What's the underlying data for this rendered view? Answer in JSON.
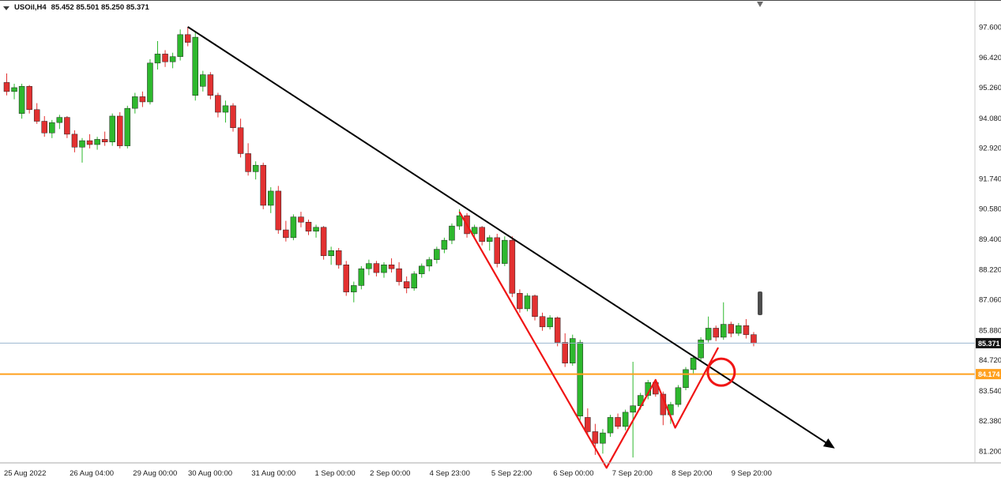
{
  "header": {
    "symbol_label": "USOil,H4",
    "ohlc_values": "85.452 85.501 85.250 85.371"
  },
  "chart_data": {
    "type": "candlestick",
    "title": "USOil,H4",
    "symbol": "USOil",
    "timeframe": "H4",
    "current_bar": {
      "open": 85.452,
      "high": 85.501,
      "low": 85.25,
      "close": 85.371
    },
    "price_axis": {
      "min": 81.2,
      "max": 97.6,
      "ticks": [
        "97.600",
        "96.420",
        "95.260",
        "94.080",
        "92.920",
        "91.740",
        "90.580",
        "89.400",
        "88.220",
        "87.060",
        "85.880",
        "84.720",
        "83.540",
        "82.380",
        "81.200"
      ]
    },
    "time_axis": [
      {
        "label": "25 Aug 2022",
        "index": 0
      },
      {
        "label": "26 Aug 04:00",
        "index": 8.7
      },
      {
        "label": "29 Aug 00:00",
        "index": 17.1
      },
      {
        "label": "30 Aug 00:00",
        "index": 24.4
      },
      {
        "label": "31 Aug 00:00",
        "index": 32.8
      },
      {
        "label": "1 Sep 00:00",
        "index": 41.2
      },
      {
        "label": "2 Sep 00:00",
        "index": 48.5
      },
      {
        "label": "4 Sep 23:00",
        "index": 56.4
      },
      {
        "label": "5 Sep 22:00",
        "index": 64.6
      },
      {
        "label": "6 Sep 00:00",
        "index": 72.8
      },
      {
        "label": "7 Sep 20:00",
        "index": 80.6
      },
      {
        "label": "8 Sep 20:00",
        "index": 88.5
      },
      {
        "label": "9 Sep 20:00",
        "index": 96.4
      }
    ],
    "candles": [
      [
        95.45,
        95.8,
        94.95,
        95.1
      ],
      [
        95.1,
        95.4,
        94.8,
        95.25
      ],
      [
        94.25,
        95.4,
        94.05,
        95.3
      ],
      [
        95.3,
        95.35,
        94.25,
        94.4
      ],
      [
        94.4,
        94.65,
        93.85,
        93.95
      ],
      [
        93.95,
        94.15,
        93.35,
        93.5
      ],
      [
        93.5,
        94,
        93.3,
        93.9
      ],
      [
        93.9,
        94.2,
        93.65,
        94.1
      ],
      [
        94.1,
        94.15,
        93.3,
        93.45
      ],
      [
        93.45,
        93.6,
        92.75,
        92.95
      ],
      [
        92.95,
        93.3,
        92.35,
        93.2
      ],
      [
        93.2,
        93.45,
        92.9,
        93.05
      ],
      [
        93.05,
        93.35,
        92.85,
        93.25
      ],
      [
        93.25,
        93.55,
        93,
        93.15
      ],
      [
        93.15,
        94.25,
        93,
        94.15
      ],
      [
        94.15,
        94.3,
        92.9,
        93
      ],
      [
        93,
        94.55,
        92.9,
        94.45
      ],
      [
        94.45,
        95.05,
        94.25,
        94.9
      ],
      [
        94.9,
        95.1,
        94.5,
        94.7
      ],
      [
        94.7,
        96.35,
        94.6,
        96.2
      ],
      [
        96.2,
        97.05,
        95.95,
        96.55
      ],
      [
        96.55,
        96.7,
        96.05,
        96.25
      ],
      [
        96.25,
        96.6,
        96,
        96.45
      ],
      [
        96.45,
        97.5,
        96.3,
        97.3
      ],
      [
        97.3,
        97.6,
        96.85,
        97
      ],
      [
        94.95,
        97.4,
        94.75,
        97.2
      ],
      [
        95.3,
        95.9,
        95.1,
        95.75
      ],
      [
        95.75,
        95.85,
        94.8,
        94.95
      ],
      [
        94.95,
        95.05,
        94.1,
        94.3
      ],
      [
        94.3,
        94.75,
        93.9,
        94.55
      ],
      [
        94.55,
        94.65,
        93.55,
        93.7
      ],
      [
        93.7,
        94.05,
        92.55,
        92.7
      ],
      [
        92.7,
        93.1,
        91.85,
        92
      ],
      [
        92,
        92.4,
        91.7,
        92.25
      ],
      [
        92.25,
        92.35,
        90.55,
        90.7
      ],
      [
        90.7,
        91.4,
        90.4,
        91.25
      ],
      [
        91.25,
        91.45,
        89.6,
        89.75
      ],
      [
        89.75,
        90.1,
        89.3,
        89.45
      ],
      [
        89.45,
        90.35,
        89.35,
        90.25
      ],
      [
        90.25,
        90.45,
        89.85,
        90.05
      ],
      [
        90.05,
        90.15,
        89.55,
        89.7
      ],
      [
        89.7,
        89.95,
        89.45,
        89.85
      ],
      [
        89.85,
        89.9,
        88.6,
        88.75
      ],
      [
        88.75,
        89.1,
        88.4,
        88.95
      ],
      [
        88.95,
        89.05,
        88.25,
        88.4
      ],
      [
        88.4,
        88.55,
        87.2,
        87.35
      ],
      [
        87.35,
        87.75,
        86.95,
        87.6
      ],
      [
        87.6,
        88.35,
        87.45,
        88.25
      ],
      [
        88.25,
        88.6,
        88,
        88.45
      ],
      [
        88.45,
        88.55,
        87.95,
        88.1
      ],
      [
        88.1,
        88.5,
        87.9,
        88.4
      ],
      [
        88.4,
        88.65,
        88.1,
        88.25
      ],
      [
        88.25,
        88.5,
        87.6,
        87.75
      ],
      [
        87.75,
        87.95,
        87.3,
        87.5
      ],
      [
        87.5,
        88.15,
        87.4,
        88.05
      ],
      [
        88.05,
        88.45,
        87.9,
        88.35
      ],
      [
        88.35,
        88.7,
        88.15,
        88.6
      ],
      [
        88.6,
        89.1,
        88.45,
        89
      ],
      [
        89,
        89.45,
        88.85,
        89.35
      ],
      [
        89.35,
        90,
        89.2,
        89.9
      ],
      [
        89.9,
        90.55,
        89.75,
        90.3
      ],
      [
        90.3,
        90.4,
        89.45,
        89.6
      ],
      [
        89.6,
        89.95,
        89.4,
        89.85
      ],
      [
        89.85,
        89.9,
        89.15,
        89.3
      ],
      [
        89.3,
        89.55,
        88.95,
        89.45
      ],
      [
        89.45,
        89.6,
        88.3,
        88.45
      ],
      [
        88.45,
        89.5,
        88.35,
        89.35
      ],
      [
        89.35,
        89.5,
        87.15,
        87.3
      ],
      [
        87.3,
        87.45,
        86.55,
        86.7
      ],
      [
        86.7,
        87.3,
        86.6,
        87.2
      ],
      [
        87.2,
        87.25,
        86.25,
        86.4
      ],
      [
        86.4,
        86.55,
        85.85,
        86
      ],
      [
        86,
        86.45,
        85.9,
        86.35
      ],
      [
        86.35,
        86.4,
        85.25,
        85.4
      ],
      [
        85.4,
        85.75,
        84.45,
        84.6
      ],
      [
        84.6,
        85.7,
        84.5,
        85.55
      ],
      [
        82.55,
        85.5,
        82.4,
        85.4
      ],
      [
        82.5,
        82.85,
        81.8,
        81.95
      ],
      [
        81.95,
        82.25,
        81.05,
        81.5
      ],
      [
        81.5,
        82.05,
        81.1,
        81.9
      ],
      [
        81.9,
        82.6,
        81.75,
        82.5
      ],
      [
        82.5,
        82.65,
        82.05,
        82.15
      ],
      [
        82.15,
        82.8,
        82,
        82.7
      ],
      [
        82.7,
        84.65,
        80.95,
        82.95
      ],
      [
        82.95,
        83.45,
        82.8,
        83.35
      ],
      [
        83.35,
        83.95,
        83.2,
        83.85
      ],
      [
        83.85,
        83.95,
        83.3,
        83.4
      ],
      [
        83.4,
        83.5,
        82.2,
        82.6
      ],
      [
        82.6,
        83.1,
        82.25,
        83
      ],
      [
        83,
        83.75,
        82.9,
        83.65
      ],
      [
        83.65,
        84.45,
        83.55,
        84.35
      ],
      [
        84.35,
        84.9,
        84.2,
        84.8
      ],
      [
        84.8,
        85.6,
        84.7,
        85.5
      ],
      [
        85.5,
        86.4,
        85.4,
        85.95
      ],
      [
        85.95,
        86.05,
        85.45,
        85.6
      ],
      [
        85.6,
        86.95,
        85.5,
        86.1
      ],
      [
        86.1,
        86.2,
        85.6,
        85.75
      ],
      [
        85.75,
        86.15,
        85.65,
        86.05
      ],
      [
        86.05,
        86.3,
        85.55,
        85.7
      ],
      [
        85.7,
        85.8,
        85.25,
        85.37
      ]
    ],
    "price_lines": [
      {
        "name": "current-price-line",
        "value": 85.371,
        "label": "85.371",
        "color": "#9cb6cf",
        "width": 1,
        "tag_bg": "#141414",
        "tag_fg": "#ffffff"
      },
      {
        "name": "orange-level-line",
        "value": 84.174,
        "label": "84.174",
        "color": "#ffa01e",
        "width": 2,
        "tag_bg": "#ffa01e",
        "tag_fg": "#ffffff"
      }
    ],
    "annotations": {
      "trendline": {
        "from": {
          "index": 24,
          "price": 97.6
        },
        "to": {
          "index": 109.5,
          "price": 81.35
        },
        "color": "#000000",
        "width": 2,
        "arrow": true
      },
      "zigzag": {
        "points": [
          [
            60,
            90.45
          ],
          [
            79.5,
            80.55
          ],
          [
            86,
            83.95
          ],
          [
            88.6,
            82.1
          ],
          [
            94.3,
            85.2
          ]
        ],
        "color": "#f01515",
        "width": 2.2
      },
      "circle": {
        "index": 94.7,
        "price": 84.25,
        "radius": 17,
        "color": "#f01515",
        "width": 3
      }
    },
    "colors": {
      "bull": "#2eb82e",
      "bear": "#e23131",
      "background": "#ffffff",
      "axis_text": "#1a1a1a"
    },
    "legend": "none",
    "grid": "off"
  }
}
